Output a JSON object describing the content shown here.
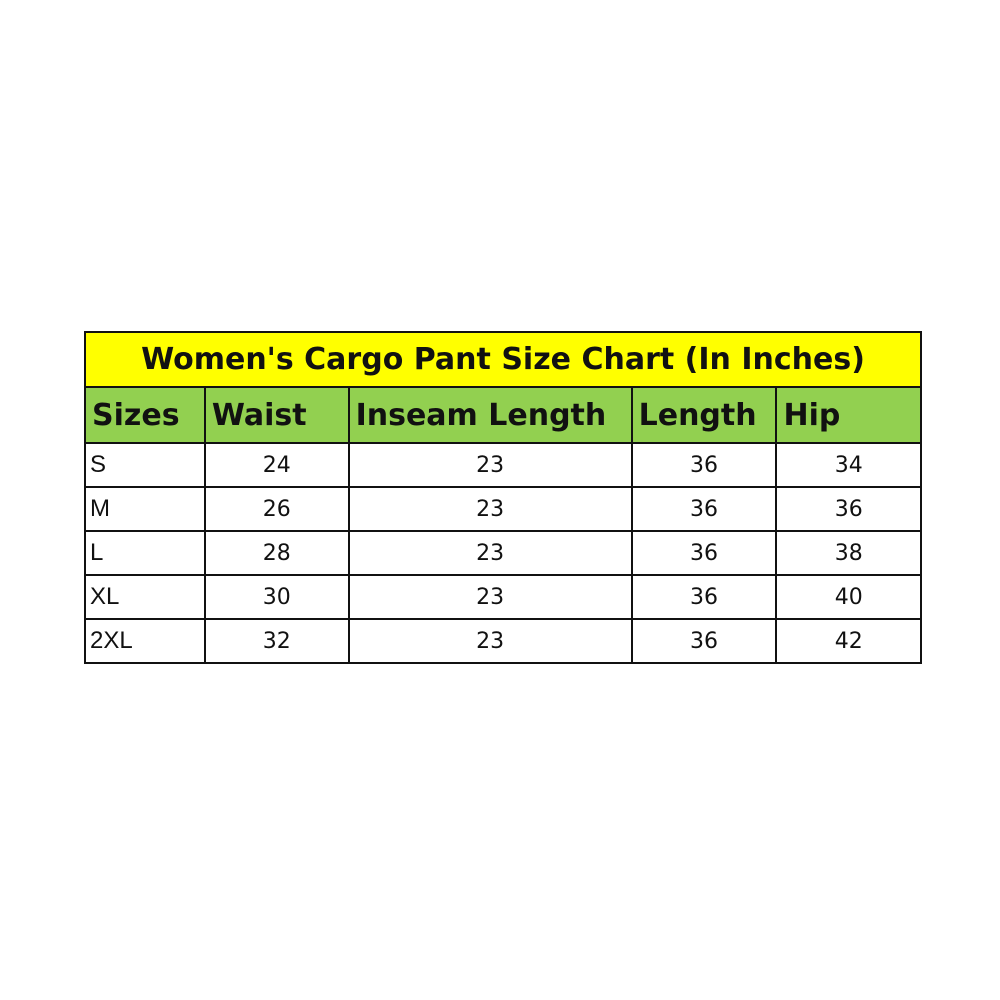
{
  "title": "Women's Cargo Pant Size Chart (In Inches)",
  "headers": [
    "Sizes",
    "Waist",
    "Inseam Length",
    "Length",
    "Hip"
  ],
  "rows": [
    [
      "S",
      "24",
      "23",
      "36",
      "34"
    ],
    [
      "M",
      "26",
      "23",
      "36",
      "36"
    ],
    [
      "L",
      "28",
      "23",
      "36",
      "38"
    ],
    [
      "XL",
      "30",
      "23",
      "36",
      "40"
    ],
    [
      "2XL",
      "32",
      "23",
      "36",
      "42"
    ]
  ],
  "colors": {
    "title_bg": "#ffff00",
    "header_bg": "#92d050"
  }
}
